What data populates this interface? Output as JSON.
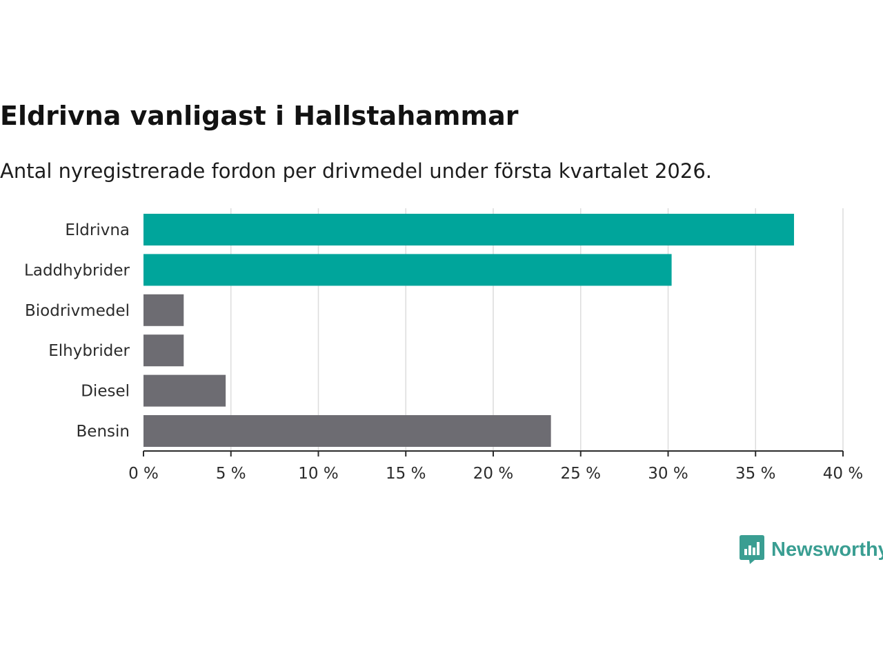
{
  "title": "Eldrivna vanligast i Hallstahammar",
  "subtitle": "Antal nyregistrerade fordon per drivmedel under första kvartalet 2026.",
  "brand": {
    "name": "Newsworthy",
    "color": "#3a9e92"
  },
  "colors": {
    "highlight": "#00a59b",
    "other": "#6d6c72",
    "grid": "#dcdcdc",
    "axis": "#2b2b2b"
  },
  "chart_data": {
    "type": "bar",
    "orientation": "horizontal",
    "title": "Eldrivna vanligast i Hallstahammar",
    "subtitle": "Antal nyregistrerade fordon per drivmedel under första kvartalet 2026.",
    "categories": [
      "Eldrivna",
      "Laddhybrider",
      "Biodrivmedel",
      "Elhybrider",
      "Diesel",
      "Bensin"
    ],
    "values": [
      37.2,
      30.2,
      2.3,
      2.3,
      4.7,
      23.3
    ],
    "highlight": [
      true,
      true,
      false,
      false,
      false,
      false
    ],
    "xlim": [
      0,
      40
    ],
    "xticks": [
      0,
      5,
      10,
      15,
      20,
      25,
      30,
      35,
      40
    ],
    "xtick_labels": [
      "0 %",
      "5 %",
      "10 %",
      "15 %",
      "20 %",
      "25 %",
      "30 %",
      "35 %",
      "40 %"
    ],
    "xlabel": "",
    "ylabel": "",
    "grid": true
  }
}
